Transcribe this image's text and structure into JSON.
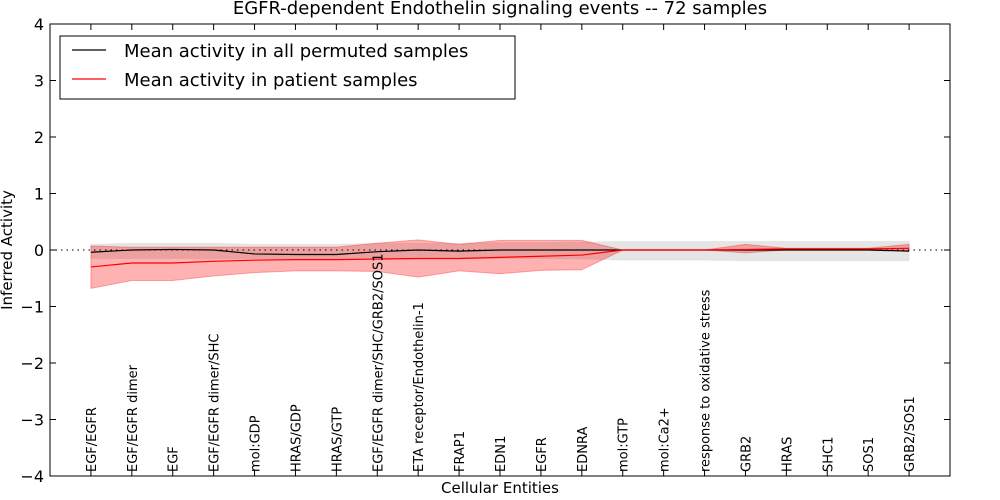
{
  "chart_data": {
    "type": "line",
    "title": "EGFR-dependent Endothelin signaling events -- 72 samples",
    "xlabel": "Cellular Entities",
    "ylabel": "Inferred Activity",
    "ylim": [
      -4,
      4
    ],
    "xlim": [
      -1,
      21
    ],
    "yticks": [
      -4,
      -3,
      -2,
      -1,
      0,
      1,
      2,
      3,
      4
    ],
    "ytick_labels": [
      "−4",
      "−3",
      "−2",
      "−1",
      "0",
      "1",
      "2",
      "3",
      "4"
    ],
    "categories": [
      "EGF/EGFR",
      "EGF/EGFR dimer",
      "EGF",
      "EGF/EGFR dimer/SHC",
      "mol:GDP",
      "HRAS/GDP",
      "HRAS/GTP",
      "EGF/EGFR dimer/SHC/GRB2/SOS1",
      "ETA receptor/Endothelin-1",
      "FRAP1",
      "EDN1",
      "EGFR",
      "EDNRA",
      "mol:GTP",
      "mol:Ca2+",
      "response to oxidative stress",
      "GRB2",
      "HRAS",
      "SHC1",
      "SOS1",
      "GRB2/SOS1"
    ],
    "legend": {
      "placement": "top-left",
      "entries": [
        "Mean activity in all permuted samples",
        "Mean activity in patient samples"
      ]
    },
    "series": [
      {
        "name": "Mean activity in all permuted samples",
        "color": "#000000",
        "values": [
          -0.04,
          0,
          0.01,
          0,
          -0.07,
          -0.08,
          -0.08,
          -0.03,
          0,
          -0.02,
          0,
          0,
          0,
          0,
          0,
          0,
          0,
          0,
          0,
          0,
          -0.02
        ],
        "band_upper": [
          0.1,
          0.12,
          0.12,
          0.12,
          0.1,
          0.1,
          0.1,
          0.12,
          0.12,
          0.12,
          0.13,
          0.13,
          0.14,
          0.15,
          0.15,
          0.15,
          0.15,
          0.15,
          0.15,
          0.15,
          0.15
        ],
        "band_lower": [
          -0.15,
          -0.15,
          -0.15,
          -0.15,
          -0.15,
          -0.15,
          -0.15,
          -0.15,
          -0.15,
          -0.15,
          -0.15,
          -0.15,
          -0.16,
          -0.18,
          -0.18,
          -0.18,
          -0.19,
          -0.19,
          -0.19,
          -0.19,
          -0.19
        ],
        "band_color": "#cccccc"
      },
      {
        "name": "Mean activity in patient samples",
        "color": "#ff0000",
        "values": [
          -0.3,
          -0.23,
          -0.23,
          -0.2,
          -0.18,
          -0.17,
          -0.17,
          -0.16,
          -0.15,
          -0.15,
          -0.13,
          -0.11,
          -0.09,
          0,
          0,
          0,
          0.01,
          0.02,
          0.02,
          0.02,
          0.03
        ],
        "band_upper": [
          0.07,
          0.05,
          0.05,
          0.05,
          0.05,
          0.05,
          0.05,
          0.12,
          0.18,
          0.1,
          0.17,
          0.17,
          0.17,
          0,
          0,
          0,
          0.1,
          0.03,
          0.03,
          0.03,
          0.1
        ],
        "band_lower": [
          -0.68,
          -0.54,
          -0.54,
          -0.46,
          -0.4,
          -0.37,
          -0.37,
          -0.38,
          -0.48,
          -0.37,
          -0.42,
          -0.36,
          -0.35,
          0,
          0,
          0,
          -0.05,
          0,
          0,
          0,
          0
        ],
        "band_color": "#ff0000"
      }
    ],
    "reference_line": {
      "y": 0,
      "style": "dotted"
    }
  }
}
